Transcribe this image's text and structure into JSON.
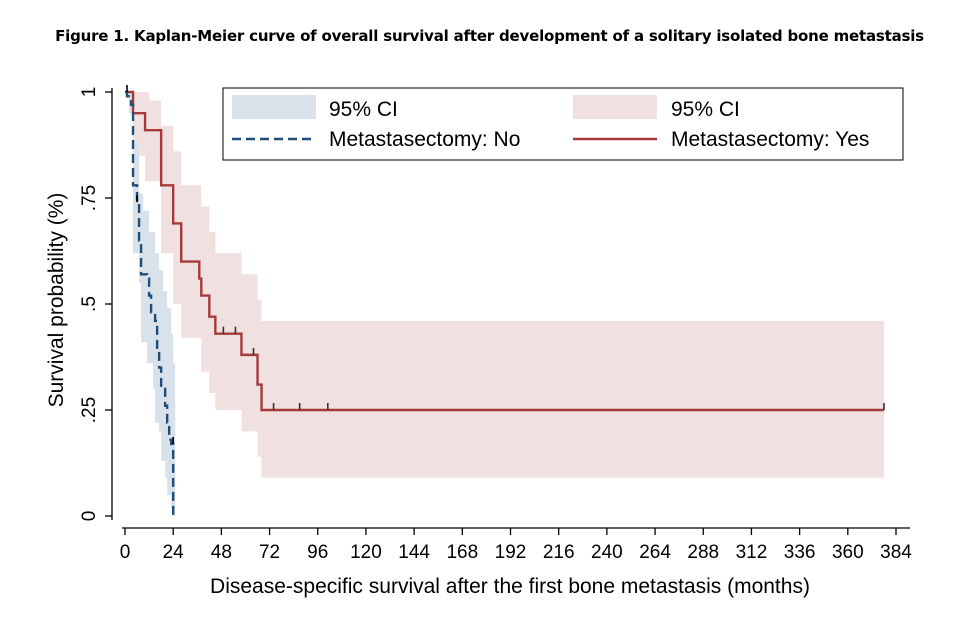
{
  "figure_title": "Figure 1. Kaplan-Meier curve of overall survival after development of a solitary isolated bone metastasis",
  "chart_data": {
    "type": "line",
    "title": "Figure 1. Kaplan-Meier curve of overall survival after development of a solitary isolated bone metastasis",
    "xlabel": "Disease-specific survival after the first bone metastasis (months)",
    "ylabel": "Survival probability (%)",
    "xlim": [
      0,
      384
    ],
    "ylim": [
      0,
      1
    ],
    "x_ticks": [
      "0",
      "24",
      "48",
      "72",
      "96",
      "120",
      "144",
      "168",
      "192",
      "216",
      "240",
      "264",
      "288",
      "312",
      "336",
      "360",
      "384"
    ],
    "x_tick_values": [
      0,
      24,
      48,
      72,
      96,
      120,
      144,
      168,
      192,
      216,
      240,
      264,
      288,
      312,
      336,
      360,
      384
    ],
    "y_ticks": [
      "0",
      ".25",
      ".5",
      ".75",
      "1"
    ],
    "y_tick_values": [
      0,
      0.25,
      0.5,
      0.75,
      1
    ],
    "grid": false,
    "legend_position": "top",
    "legend": {
      "ci_no_label": "95% CI",
      "ci_yes_label": "95% CI",
      "no_label": "Metastasectomy: No",
      "yes_label": "Metastasectomy: Yes"
    },
    "series": [
      {
        "name": "Metastasectomy: No",
        "style": "dashed",
        "color": "#1f4e79",
        "ci_color": "#d9e1ea",
        "steps": [
          [
            0,
            1.0
          ],
          [
            1,
            0.99
          ],
          [
            3,
            0.97
          ],
          [
            4,
            0.78
          ],
          [
            6,
            0.74
          ],
          [
            7,
            0.65
          ],
          [
            8,
            0.57
          ],
          [
            11,
            0.56
          ],
          [
            12,
            0.52
          ],
          [
            13,
            0.48
          ],
          [
            15,
            0.46
          ],
          [
            16,
            0.39
          ],
          [
            17,
            0.35
          ],
          [
            18,
            0.3
          ],
          [
            20,
            0.26
          ],
          [
            21,
            0.22
          ],
          [
            22,
            0.18
          ],
          [
            23,
            0.17
          ],
          [
            24,
            0.0
          ]
        ],
        "ci_upper": [
          [
            0,
            1.0
          ],
          [
            3,
            1.0
          ],
          [
            4,
            0.88
          ],
          [
            7,
            0.76
          ],
          [
            9,
            0.72
          ],
          [
            12,
            0.67
          ],
          [
            15,
            0.62
          ],
          [
            17,
            0.58
          ],
          [
            19,
            0.53
          ],
          [
            21,
            0.49
          ],
          [
            23,
            0.43
          ],
          [
            24,
            0.36
          ],
          [
            25,
            0.36
          ]
        ],
        "ci_lower": [
          [
            0,
            1.0
          ],
          [
            2,
            0.95
          ],
          [
            4,
            0.62
          ],
          [
            7,
            0.55
          ],
          [
            8,
            0.41
          ],
          [
            11,
            0.36
          ],
          [
            14,
            0.3
          ],
          [
            15,
            0.22
          ],
          [
            17,
            0.2
          ],
          [
            18,
            0.13
          ],
          [
            20,
            0.09
          ],
          [
            21,
            0.05
          ],
          [
            23,
            0.02
          ],
          [
            24,
            0.0
          ],
          [
            25,
            0.0
          ]
        ],
        "censored": [
          [
            1,
            1.0
          ],
          [
            6,
            0.74
          ],
          [
            24,
            0.17
          ]
        ]
      },
      {
        "name": "Metastasectomy: Yes",
        "style": "solid",
        "color": "#a63a3a",
        "ci_color": "#f0e0e0",
        "steps": [
          [
            0,
            1.0
          ],
          [
            4,
            0.95
          ],
          [
            10,
            0.91
          ],
          [
            18,
            0.78
          ],
          [
            24,
            0.69
          ],
          [
            28,
            0.6
          ],
          [
            37,
            0.56
          ],
          [
            38,
            0.52
          ],
          [
            42,
            0.47
          ],
          [
            45,
            0.43
          ],
          [
            58,
            0.38
          ],
          [
            66,
            0.31
          ],
          [
            68,
            0.25
          ],
          [
            378,
            0.25
          ]
        ],
        "ci_upper": [
          [
            0,
            1.0
          ],
          [
            4,
            1.0
          ],
          [
            12,
            0.98
          ],
          [
            18,
            0.92
          ],
          [
            24,
            0.86
          ],
          [
            28,
            0.78
          ],
          [
            38,
            0.73
          ],
          [
            42,
            0.67
          ],
          [
            45,
            0.62
          ],
          [
            58,
            0.57
          ],
          [
            66,
            0.51
          ],
          [
            68,
            0.46
          ],
          [
            378,
            0.46
          ]
        ],
        "ci_lower": [
          [
            0,
            1.0
          ],
          [
            4,
            0.85
          ],
          [
            10,
            0.79
          ],
          [
            18,
            0.62
          ],
          [
            24,
            0.5
          ],
          [
            28,
            0.42
          ],
          [
            38,
            0.34
          ],
          [
            42,
            0.29
          ],
          [
            45,
            0.25
          ],
          [
            58,
            0.2
          ],
          [
            66,
            0.14
          ],
          [
            68,
            0.09
          ],
          [
            378,
            0.09
          ]
        ],
        "censored": [
          [
            49,
            0.43
          ],
          [
            55,
            0.43
          ],
          [
            64,
            0.38
          ],
          [
            74,
            0.25
          ],
          [
            87,
            0.25
          ],
          [
            101,
            0.25
          ],
          [
            378,
            0.25
          ]
        ]
      }
    ]
  }
}
